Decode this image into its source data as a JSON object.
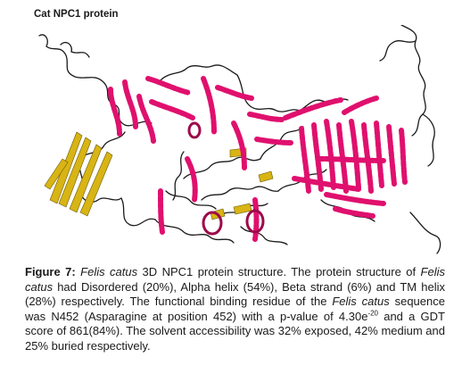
{
  "figure": {
    "panel_title": "Cat NPC1 protein",
    "colors": {
      "helix": "#e0106e",
      "helix_dark": "#9c0a4a",
      "strand": "#d8b414",
      "coil": "#1a1a1a"
    }
  },
  "caption": {
    "label": "Figure 7:",
    "species": "Felis catus",
    "s1": " 3D NPC1 protein structure. The protein structure of ",
    "s2": " had Disordered (20%), Alpha helix (54%), Beta strand (6%) and TM helix (28%) respectively. The functional binding residue of the ",
    "s3": " sequence was N452 (Asparagine at position 452) with a p-value of 4.30e",
    "exponent": "-20",
    "s4": " and a GDT score of 861(84%).  The solvent accessibility was 32% exposed, 42% medium and 25% buried respectively."
  }
}
